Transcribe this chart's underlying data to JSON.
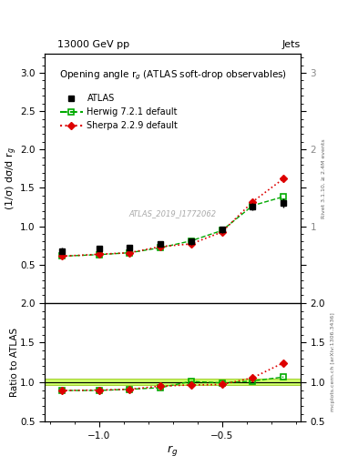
{
  "title_top": "13000 GeV pp",
  "title_right": "Jets",
  "plot_title": "Opening angle r$_g$ (ATLAS soft-drop observables)",
  "right_label_main": "Rivet 3.1.10, ≥ 2.4M events",
  "right_label_ratio": "mcplots.cern.ch [arXiv:1306.3436]",
  "watermark": "ATLAS_2019_I1772062",
  "xlabel": "$r_g$",
  "ylabel_main": "(1/σ) dσ/d r$_g$",
  "ylabel_ratio": "Ratio to ATLAS",
  "ylim_main": [
    0.0,
    3.25
  ],
  "ylim_ratio": [
    0.5,
    2.0
  ],
  "xlim": [
    -1.22,
    -0.18
  ],
  "xticks": [
    -1.0,
    -0.5
  ],
  "atlas_x": [
    -1.15,
    -1.0,
    -0.875,
    -0.75,
    -0.625,
    -0.5,
    -0.375,
    -0.25
  ],
  "atlas_y": [
    0.68,
    0.705,
    0.72,
    0.775,
    0.8,
    0.955,
    1.255,
    1.3
  ],
  "atlas_yerr": [
    0.04,
    0.03,
    0.03,
    0.03,
    0.04,
    0.04,
    0.05,
    0.06
  ],
  "herwig_x": [
    -1.15,
    -1.0,
    -0.875,
    -0.75,
    -0.625,
    -0.5,
    -0.375,
    -0.25
  ],
  "herwig_y": [
    0.61,
    0.63,
    0.655,
    0.72,
    0.81,
    0.945,
    1.27,
    1.385
  ],
  "sherpa_x": [
    -1.15,
    -1.0,
    -0.875,
    -0.75,
    -0.625,
    -0.5,
    -0.375,
    -0.25
  ],
  "sherpa_y": [
    0.61,
    0.635,
    0.655,
    0.735,
    0.77,
    0.925,
    1.32,
    1.62
  ],
  "herwig_ratio": [
    0.895,
    0.895,
    0.91,
    0.93,
    1.01,
    0.99,
    1.015,
    1.065
  ],
  "sherpa_ratio": [
    0.895,
    0.9,
    0.91,
    0.95,
    0.965,
    0.97,
    1.055,
    1.245
  ],
  "color_atlas": "#000000",
  "color_herwig": "#00aa00",
  "color_sherpa": "#dd0000",
  "color_atlas_band_face": "#ccff66",
  "color_atlas_band_edge": "#88bb00",
  "bg_color": "#ffffff"
}
